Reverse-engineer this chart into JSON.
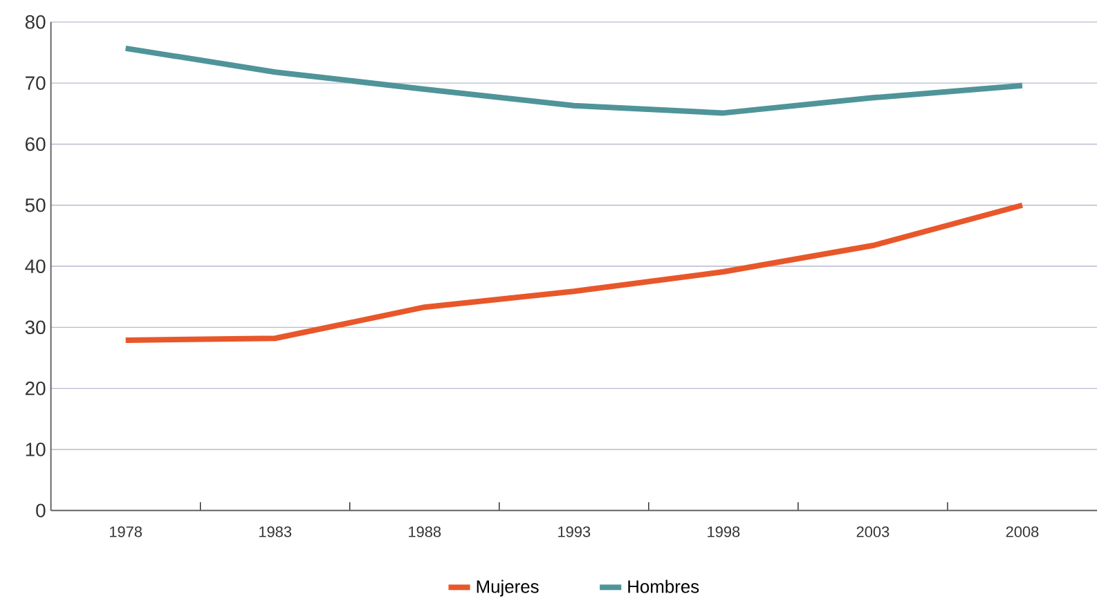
{
  "chart_data": {
    "type": "line",
    "categories": [
      "1978",
      "1983",
      "1988",
      "1993",
      "1998",
      "2003",
      "2008"
    ],
    "series": [
      {
        "name": "Mujeres",
        "color": "#e8572a",
        "values": [
          27.9,
          28.2,
          33.3,
          35.9,
          39.1,
          43.4,
          50.0
        ]
      },
      {
        "name": "Hombres",
        "color": "#4f9499",
        "values": [
          75.7,
          71.8,
          69.0,
          66.3,
          65.1,
          67.6,
          69.6
        ]
      }
    ],
    "ylim": [
      0,
      80
    ],
    "yticks": [
      0,
      10,
      20,
      30,
      40,
      50,
      60,
      70,
      80
    ],
    "grid": "y",
    "legend": "bottom",
    "line_style": "solid",
    "marker": "none"
  }
}
